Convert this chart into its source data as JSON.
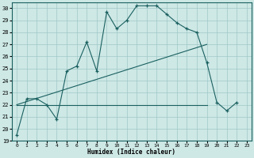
{
  "xlabel": "Humidex (Indice chaleur)",
  "bg_color": "#cde8e5",
  "grid_color": "#a0c8c8",
  "line_color": "#1a6060",
  "xlim": [
    -0.5,
    23.5
  ],
  "ylim": [
    19,
    30.5
  ],
  "xticks": [
    0,
    1,
    2,
    3,
    4,
    5,
    6,
    7,
    8,
    9,
    10,
    11,
    12,
    13,
    14,
    15,
    16,
    17,
    18,
    19,
    20,
    21,
    22,
    23
  ],
  "yticks": [
    19,
    20,
    21,
    22,
    23,
    24,
    25,
    26,
    27,
    28,
    29,
    30
  ],
  "line1_x": [
    0,
    1,
    2,
    3,
    4,
    5,
    6,
    7,
    8,
    9,
    10,
    11,
    12,
    13,
    14,
    15,
    16,
    17,
    18,
    19,
    20,
    21,
    22
  ],
  "line1_y": [
    19.5,
    22.5,
    22.5,
    22.0,
    20.8,
    24.8,
    25.2,
    27.2,
    24.8,
    29.7,
    28.3,
    29.0,
    30.2,
    30.2,
    30.2,
    29.5,
    28.8,
    28.3,
    28.0,
    25.5,
    22.2,
    21.5,
    22.2
  ],
  "line2_x": [
    0,
    19
  ],
  "line2_y": [
    22.0,
    22.0
  ],
  "line3_x": [
    0,
    19
  ],
  "line3_y": [
    22.0,
    27.0
  ]
}
